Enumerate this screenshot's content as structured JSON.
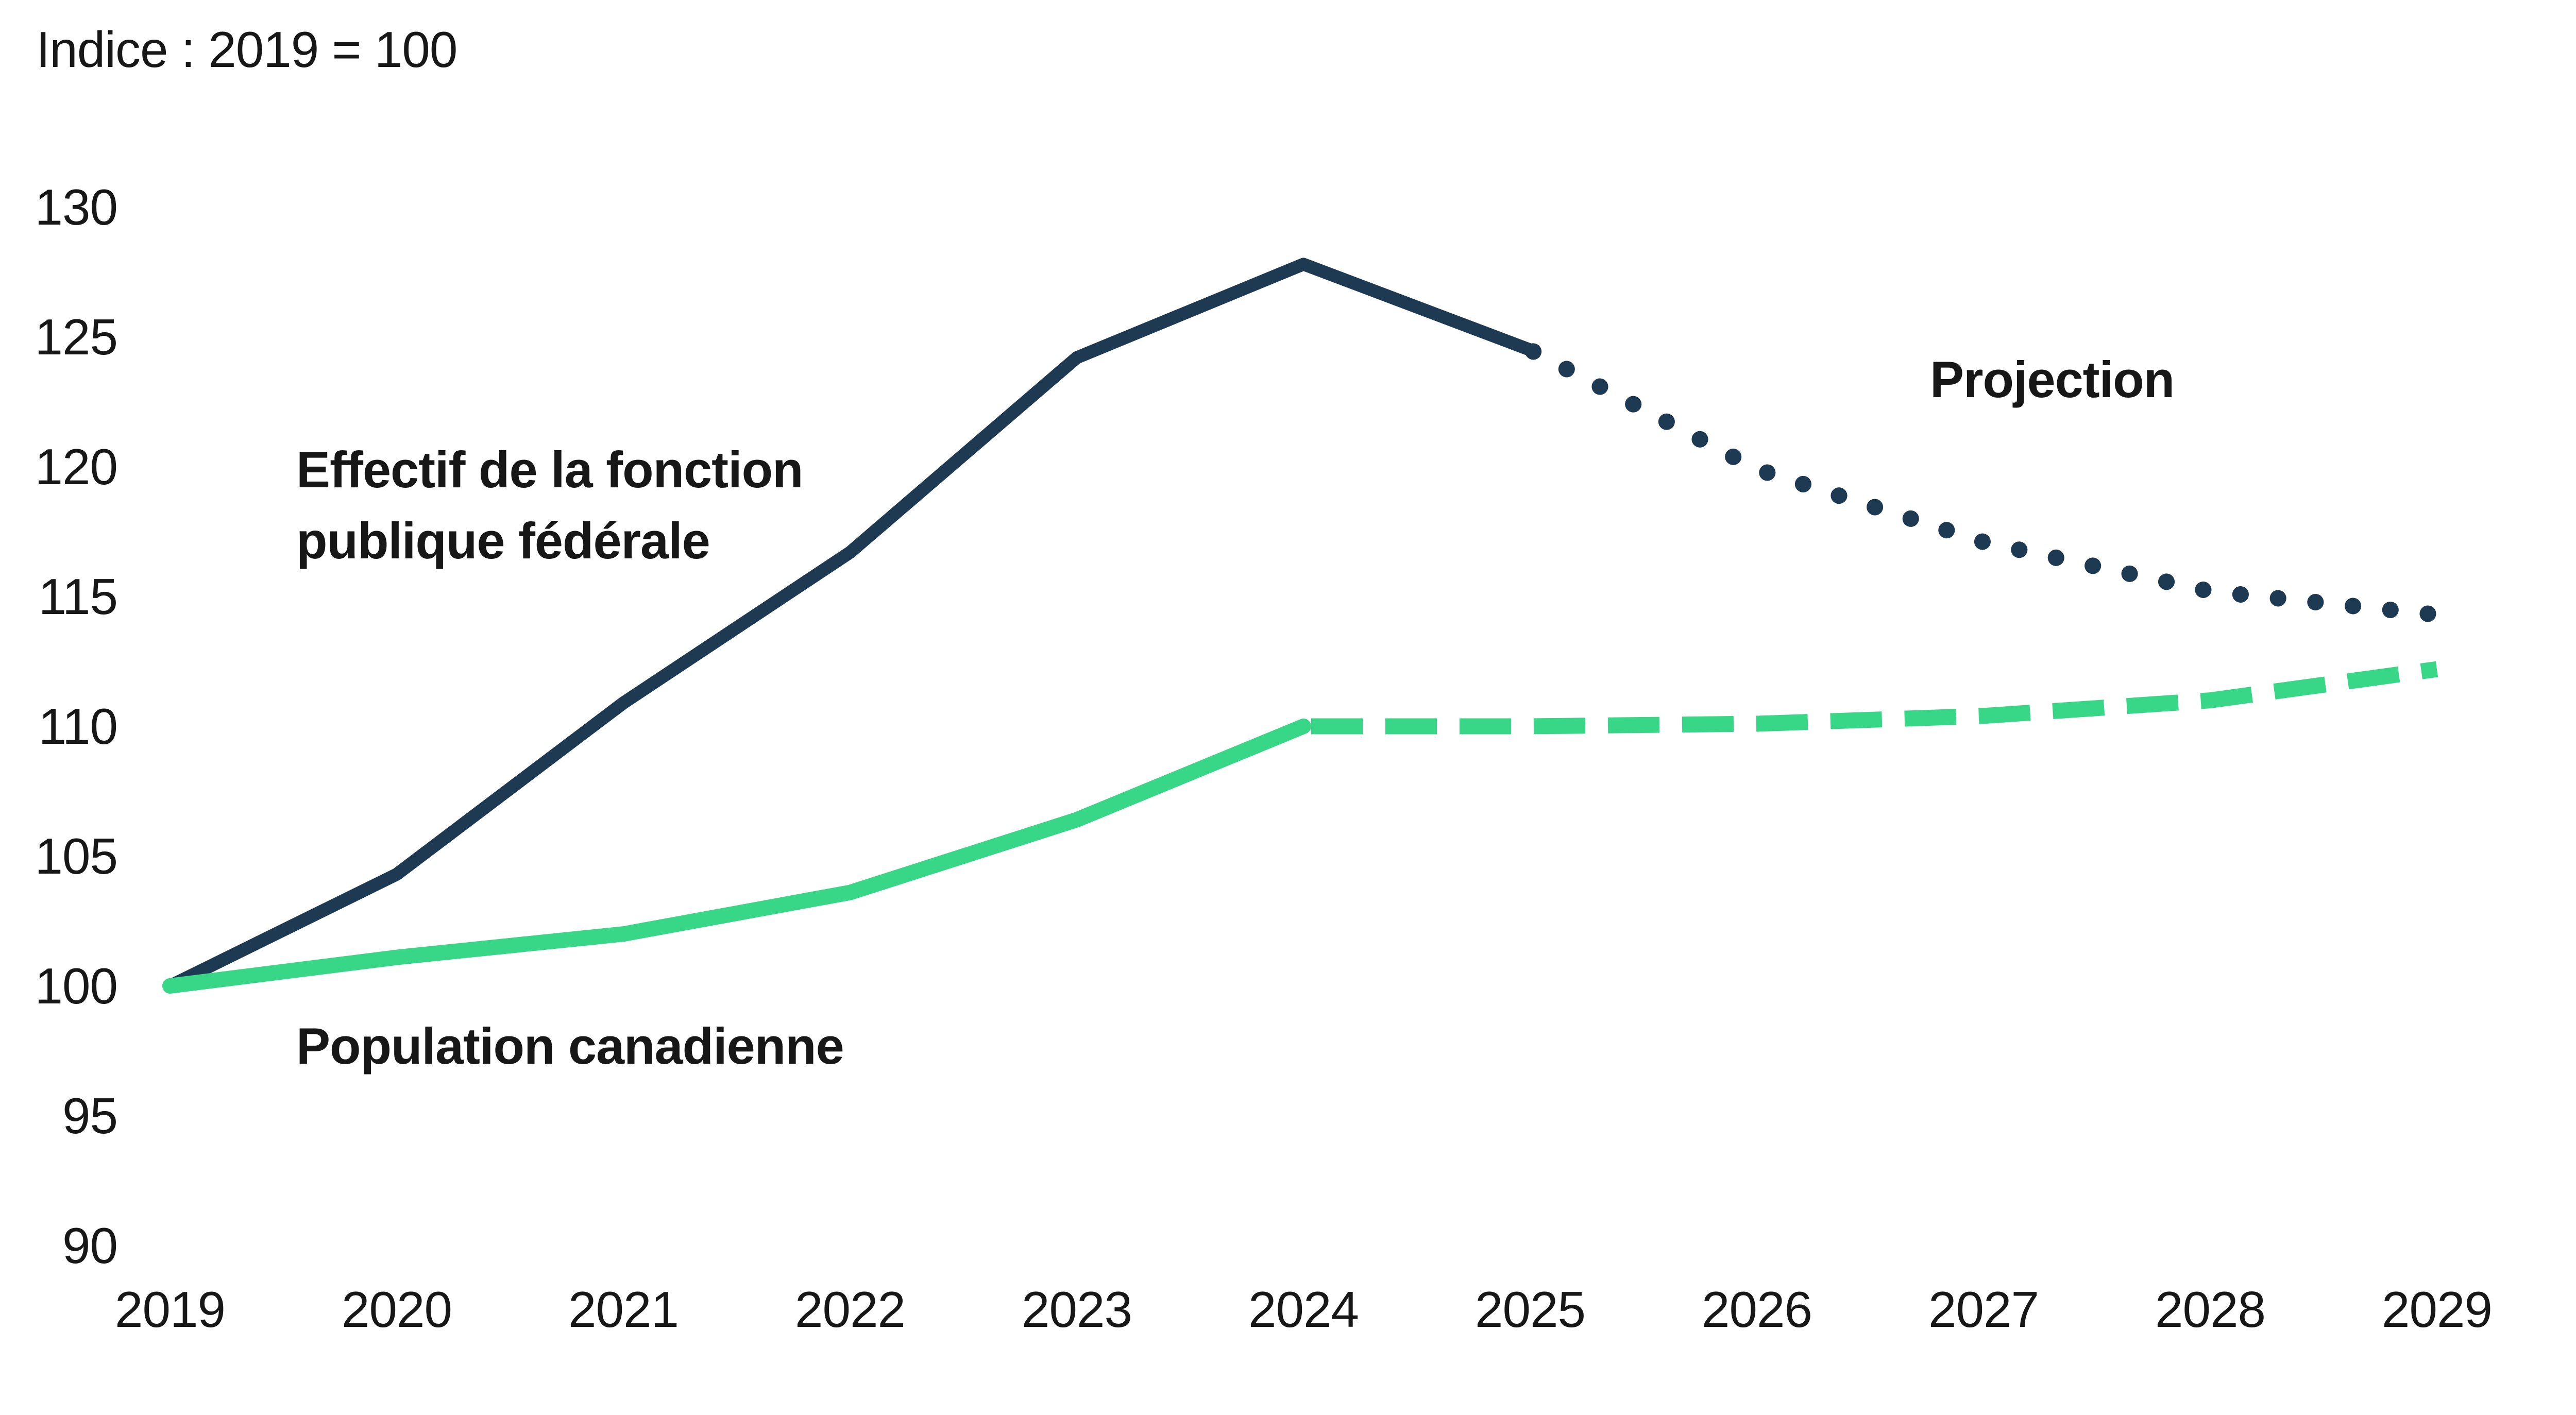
{
  "title": "Indice : 2019 = 100",
  "annotations": {
    "series1_label": "Effectif de la fonction\npublique fédérale",
    "series2_label": "Population canadienne",
    "projection_label": "Projection"
  },
  "colors": {
    "navy": "#1e3a52",
    "green": "#38d687",
    "text": "#171717",
    "background": "#ffffff"
  },
  "chart_data": {
    "type": "line",
    "title": "Indice : 2019 = 100",
    "xlabel": "",
    "ylabel": "",
    "x": [
      2019,
      2020,
      2021,
      2022,
      2023,
      2024,
      2025,
      2026,
      2027,
      2028,
      2029
    ],
    "yticks": [
      130,
      125,
      120,
      115,
      110,
      105,
      100,
      95,
      90
    ],
    "ylim": [
      90,
      130
    ],
    "grid": false,
    "axes_drawn": false,
    "legend_position": "none",
    "series": [
      {
        "name": "Effectif de la fonction publique fédérale",
        "color": "#1e3a52",
        "values": [
          100,
          104.3,
          110.9,
          116.7,
          124.2,
          127.8,
          124.5,
          119.9,
          117.1,
          115.2,
          114.3
        ],
        "projection_from_year": 2025,
        "projection_style": "dotted"
      },
      {
        "name": "Population canadienne",
        "color": "#38d687",
        "values": [
          100,
          101.1,
          102.0,
          103.6,
          106.4,
          110.0,
          110.0,
          110.1,
          110.4,
          111.0,
          112.2
        ],
        "projection_from_year": 2024,
        "projection_style": "dashed"
      }
    ]
  }
}
